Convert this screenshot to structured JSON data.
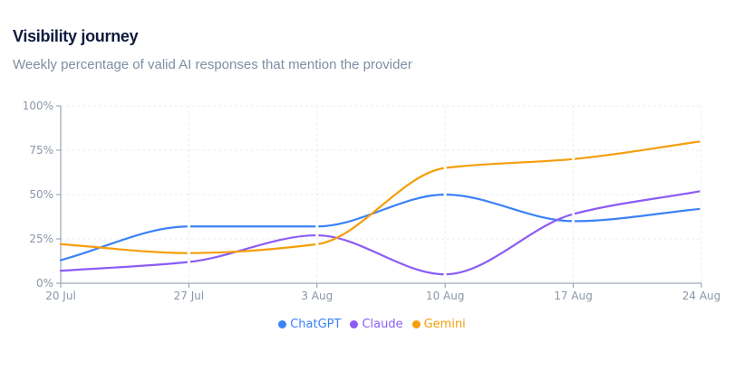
{
  "header": {
    "title": "Visibility journey",
    "subtitle": "Weekly percentage of valid AI responses that mention the provider"
  },
  "chart_data": {
    "type": "line",
    "title": "Visibility journey",
    "subtitle": "Weekly percentage of valid AI responses that mention the provider",
    "categories": [
      "20 Jul",
      "27 Jul",
      "3 Aug",
      "10 Aug",
      "17 Aug",
      "24 Aug"
    ],
    "y_ticks": [
      "0%",
      "25%",
      "50%",
      "75%",
      "100%"
    ],
    "ylim": [
      0,
      100
    ],
    "grid": true,
    "legend_position": "bottom",
    "series": [
      {
        "name": "ChatGPT",
        "color": "#3b82f6",
        "values": [
          13,
          32,
          32,
          50,
          35,
          42
        ]
      },
      {
        "name": "Claude",
        "color": "#8b5cf6",
        "values": [
          7,
          12,
          27,
          5,
          39,
          52
        ]
      },
      {
        "name": "Gemini",
        "color": "#f59e0b",
        "values": [
          22,
          17,
          22,
          65,
          70,
          80
        ]
      }
    ]
  }
}
